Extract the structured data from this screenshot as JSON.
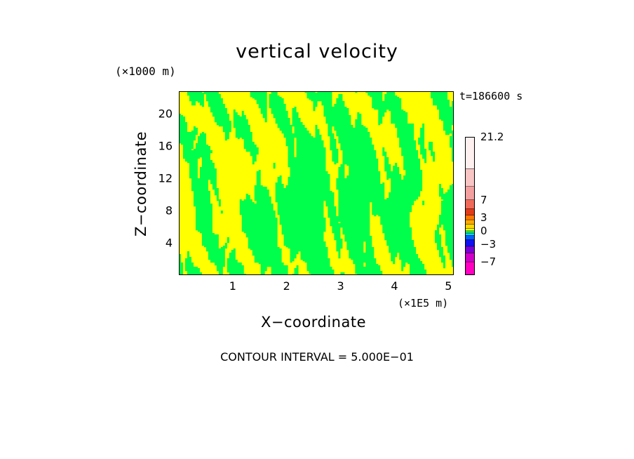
{
  "chart_data": {
    "type": "heatmap",
    "title": "vertical velocity",
    "xlabel": "X−coordinate",
    "ylabel": "Z−coordinate",
    "x_unit": "(×1E5 m)",
    "y_unit": "(×1000 m)",
    "time_label": "t=186600 s",
    "footer": "CONTOUR INTERVAL = 5.000E−01",
    "xlim": [
      0,
      5.1
    ],
    "ylim": [
      0,
      22.8
    ],
    "x_ticks": [
      1,
      2,
      3,
      4,
      5
    ],
    "y_ticks": [
      4,
      8,
      12,
      16,
      20
    ],
    "x_tick_labels": [
      "1",
      "2",
      "3",
      "4",
      "5"
    ],
    "y_tick_labels": [
      "4",
      "8",
      "12",
      "16",
      "20"
    ],
    "field_colors": {
      "positive_small": "#ffff00",
      "negative_small": "#00ff4c"
    },
    "colorbar": {
      "min": -10,
      "max": 21.2,
      "tick_values": [
        21.2,
        7,
        3,
        0,
        -3,
        -7
      ],
      "tick_labels": [
        "21.2",
        "7",
        "3",
        "0",
        "−3",
        "−7"
      ],
      "bands": [
        {
          "from": -10,
          "to": -7,
          "color": "#ff00c0"
        },
        {
          "from": -7,
          "to": -5,
          "color": "#d000c8"
        },
        {
          "from": -5,
          "to": -3.5,
          "color": "#7a00d8"
        },
        {
          "from": -3.5,
          "to": -2,
          "color": "#1010f0"
        },
        {
          "from": -2,
          "to": -1,
          "color": "#0060ff"
        },
        {
          "from": -1,
          "to": -0.5,
          "color": "#00d8ff"
        },
        {
          "from": -0.5,
          "to": 0,
          "color": "#00ff4c"
        },
        {
          "from": 0,
          "to": 0.5,
          "color": "#ffff00"
        },
        {
          "from": 0.5,
          "to": 1.5,
          "color": "#ffd800"
        },
        {
          "from": 1.5,
          "to": 2.5,
          "color": "#ffa800"
        },
        {
          "from": 2.5,
          "to": 3.5,
          "color": "#ff7800"
        },
        {
          "from": 3.5,
          "to": 5,
          "color": "#e03c1c"
        },
        {
          "from": 5,
          "to": 7,
          "color": "#ee6a5a"
        },
        {
          "from": 7,
          "to": 10,
          "color": "#f4a0a0"
        },
        {
          "from": 10,
          "to": 14,
          "color": "#f8c4c4"
        },
        {
          "from": 14,
          "to": 21.2,
          "color": "#fff0f0"
        }
      ]
    }
  }
}
